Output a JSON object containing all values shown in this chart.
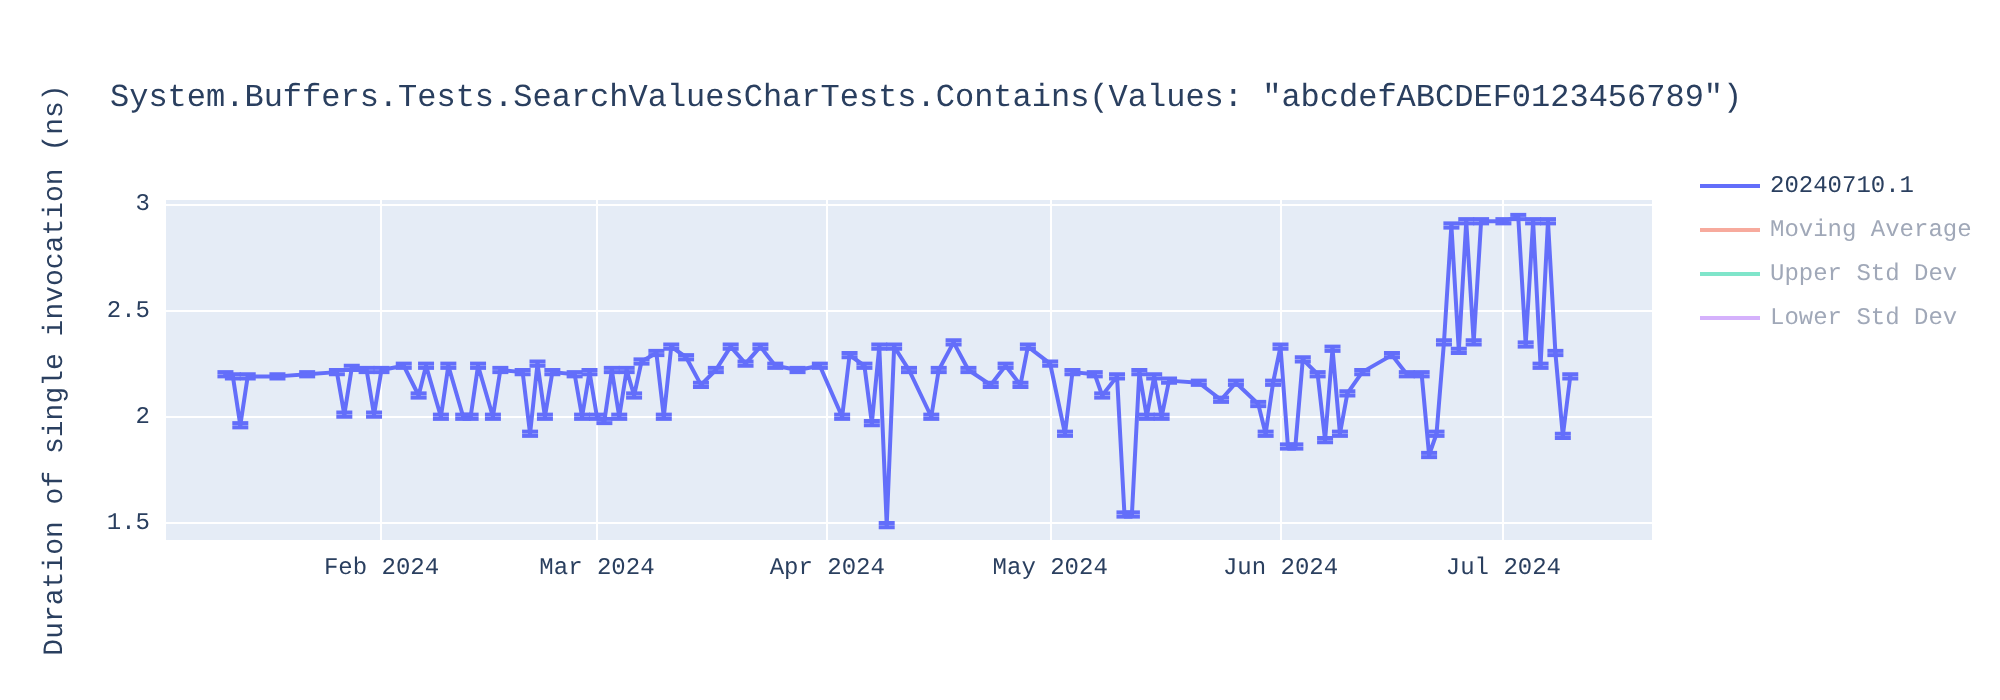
{
  "chart_data": {
    "type": "line",
    "title": "System.Buffers.Tests.SearchValuesCharTests.Contains(Values: \"abcdefABCDEF0123456789\")",
    "ylabel": "Duration of single invocation (ns)",
    "x": [
      "2024-01-11",
      "2024-01-12",
      "2024-01-13",
      "2024-01-14",
      "2024-01-18",
      "2024-01-22",
      "2024-01-26",
      "2024-01-27",
      "2024-01-28",
      "2024-01-30",
      "2024-01-31",
      "2024-02-01",
      "2024-02-04",
      "2024-02-06",
      "2024-02-07",
      "2024-02-09",
      "2024-02-10",
      "2024-02-12",
      "2024-02-13",
      "2024-02-14",
      "2024-02-16",
      "2024-02-17",
      "2024-02-20",
      "2024-02-21",
      "2024-02-22",
      "2024-02-23",
      "2024-02-24",
      "2024-02-27",
      "2024-02-28",
      "2024-02-29",
      "2024-03-01",
      "2024-03-02",
      "2024-03-03",
      "2024-03-04",
      "2024-03-05",
      "2024-03-06",
      "2024-03-07",
      "2024-03-09",
      "2024-03-10",
      "2024-03-11",
      "2024-03-13",
      "2024-03-15",
      "2024-03-17",
      "2024-03-19",
      "2024-03-21",
      "2024-03-23",
      "2024-03-25",
      "2024-03-28",
      "2024-03-31",
      "2024-04-03",
      "2024-04-04",
      "2024-04-06",
      "2024-04-07",
      "2024-04-08",
      "2024-04-09",
      "2024-04-10",
      "2024-04-12",
      "2024-04-15",
      "2024-04-16",
      "2024-04-18",
      "2024-04-20",
      "2024-04-23",
      "2024-04-25",
      "2024-04-27",
      "2024-04-28",
      "2024-05-01",
      "2024-05-03",
      "2024-05-04",
      "2024-05-07",
      "2024-05-08",
      "2024-05-10",
      "2024-05-11",
      "2024-05-12",
      "2024-05-13",
      "2024-05-14",
      "2024-05-15",
      "2024-05-16",
      "2024-05-17",
      "2024-05-21",
      "2024-05-24",
      "2024-05-26",
      "2024-05-29",
      "2024-05-30",
      "2024-05-31",
      "2024-06-01",
      "2024-06-02",
      "2024-06-03",
      "2024-06-04",
      "2024-06-06",
      "2024-06-07",
      "2024-06-08",
      "2024-06-09",
      "2024-06-10",
      "2024-06-12",
      "2024-06-16",
      "2024-06-18",
      "2024-06-20",
      "2024-06-21",
      "2024-06-22",
      "2024-06-23",
      "2024-06-24",
      "2024-06-25",
      "2024-06-26",
      "2024-06-27",
      "2024-06-28",
      "2024-07-01",
      "2024-07-03",
      "2024-07-04",
      "2024-07-05",
      "2024-07-06",
      "2024-07-07",
      "2024-07-08",
      "2024-07-09",
      "2024-07-10"
    ],
    "series": [
      {
        "name": "20240710.1",
        "color": "#636efa",
        "values": [
          2.2,
          2.19,
          1.96,
          2.19,
          2.19,
          2.2,
          2.21,
          2.01,
          2.23,
          2.22,
          2.01,
          2.22,
          2.24,
          2.1,
          2.24,
          2.0,
          2.24,
          2.0,
          2.0,
          2.24,
          2.0,
          2.22,
          2.21,
          1.92,
          2.25,
          2.0,
          2.21,
          2.2,
          2.0,
          2.21,
          2.0,
          1.98,
          2.22,
          2.0,
          2.22,
          2.1,
          2.26,
          2.3,
          2.0,
          2.33,
          2.28,
          2.15,
          2.22,
          2.33,
          2.25,
          2.33,
          2.24,
          2.22,
          2.24,
          2.0,
          2.29,
          2.24,
          1.97,
          2.33,
          1.49,
          2.33,
          2.22,
          2.0,
          2.22,
          2.35,
          2.22,
          2.15,
          2.24,
          2.15,
          2.33,
          2.25,
          1.92,
          2.21,
          2.2,
          2.1,
          2.19,
          1.54,
          1.54,
          2.21,
          2.0,
          2.19,
          2.0,
          2.17,
          2.16,
          2.08,
          2.16,
          2.06,
          1.92,
          2.16,
          2.33,
          1.86,
          1.86,
          2.27,
          2.2,
          1.89,
          2.32,
          1.92,
          2.11,
          2.21,
          2.29,
          2.2,
          2.2,
          1.82,
          1.92,
          2.35,
          2.9,
          2.31,
          2.92,
          2.35,
          2.92,
          2.92,
          2.94,
          2.34,
          2.92,
          2.24,
          2.92,
          2.3,
          1.91,
          2.19
        ],
        "errors": [
          0.01,
          0.01,
          0.01,
          0.01,
          0.01,
          0.01,
          0.01,
          0.01,
          0.01,
          0.01,
          0.01,
          0.01,
          0.01,
          0.01,
          0.01,
          0.01,
          0.01,
          0.01,
          0.01,
          0.01,
          0.01,
          0.01,
          0.01,
          0.01,
          0.01,
          0.01,
          0.01,
          0.01,
          0.01,
          0.01,
          0.01,
          0.01,
          0.01,
          0.01,
          0.01,
          0.01,
          0.01,
          0.01,
          0.01,
          0.01,
          0.01,
          0.01,
          0.01,
          0.01,
          0.01,
          0.01,
          0.01,
          0.01,
          0.01,
          0.01,
          0.01,
          0.01,
          0.01,
          0.01,
          0.01,
          0.01,
          0.01,
          0.01,
          0.01,
          0.01,
          0.01,
          0.01,
          0.01,
          0.01,
          0.01,
          0.01,
          0.01,
          0.01,
          0.01,
          0.01,
          0.01,
          0.01,
          0.01,
          0.01,
          0.01,
          0.01,
          0.01,
          0.01,
          0.01,
          0.01,
          0.01,
          0.01,
          0.01,
          0.01,
          0.01,
          0.01,
          0.01,
          0.01,
          0.01,
          0.01,
          0.01,
          0.01,
          0.01,
          0.01,
          0.01,
          0.01,
          0.01,
          0.01,
          0.01,
          0.01,
          0.01,
          0.01,
          0.01,
          0.01,
          0.01,
          0.01,
          0.01,
          0.01,
          0.01,
          0.01,
          0.01,
          0.01,
          0.01,
          0.01
        ]
      },
      {
        "name": "Moving Average",
        "color": "#ef553b",
        "values": [
          null,
          null,
          null,
          null,
          null,
          null,
          null,
          null,
          null,
          null,
          null,
          null,
          null,
          null,
          null,
          null,
          null,
          null,
          null,
          null,
          null,
          null,
          null,
          null,
          null,
          null,
          null,
          null,
          null,
          null,
          null,
          null,
          null,
          null,
          null,
          null,
          null,
          null,
          null,
          null,
          null,
          null,
          null,
          null,
          null,
          null,
          null,
          null,
          null,
          null,
          null,
          null,
          null,
          null,
          null,
          null,
          null,
          null,
          null,
          null,
          null,
          null,
          null,
          null,
          null,
          null,
          null,
          null,
          null,
          null,
          null,
          null,
          null,
          null,
          null,
          null,
          null,
          null,
          null,
          null,
          null,
          null,
          null,
          null,
          null,
          null,
          null,
          null,
          null,
          null,
          null,
          null,
          null,
          null,
          null,
          null,
          null,
          null,
          null,
          null,
          null,
          null,
          null,
          null,
          null,
          null,
          null,
          null,
          null,
          null,
          null,
          null,
          null,
          null
        ]
      },
      {
        "name": "Upper Std Dev",
        "color": "#00cc96",
        "values": [
          null,
          null,
          null,
          null,
          null,
          null,
          null,
          null,
          null,
          null,
          null,
          null,
          null,
          null,
          null,
          null,
          null,
          null,
          null,
          null,
          null,
          null,
          null,
          null,
          null,
          null,
          null,
          null,
          null,
          null,
          null,
          null,
          null,
          null,
          null,
          null,
          null,
          null,
          null,
          null,
          null,
          null,
          null,
          null,
          null,
          null,
          null,
          null,
          null,
          null,
          null,
          null,
          null,
          null,
          null,
          null,
          null,
          null,
          null,
          null,
          null,
          null,
          null,
          null,
          null,
          null,
          null,
          null,
          null,
          null,
          null,
          null,
          null,
          null,
          null,
          null,
          null,
          null,
          null,
          null,
          null,
          null,
          null,
          null,
          null,
          null,
          null,
          null,
          null,
          null,
          null,
          null,
          null,
          null,
          null,
          null,
          null,
          null,
          null,
          null,
          null,
          null,
          null,
          null,
          null,
          null,
          null,
          null,
          null,
          null,
          null,
          null,
          null,
          null
        ]
      },
      {
        "name": "Lower Std Dev",
        "color": "#ab63fa",
        "values": [
          null,
          null,
          null,
          null,
          null,
          null,
          null,
          null,
          null,
          null,
          null,
          null,
          null,
          null,
          null,
          null,
          null,
          null,
          null,
          null,
          null,
          null,
          null,
          null,
          null,
          null,
          null,
          null,
          null,
          null,
          null,
          null,
          null,
          null,
          null,
          null,
          null,
          null,
          null,
          null,
          null,
          null,
          null,
          null,
          null,
          null,
          null,
          null,
          null,
          null,
          null,
          null,
          null,
          null,
          null,
          null,
          null,
          null,
          null,
          null,
          null,
          null,
          null,
          null,
          null,
          null,
          null,
          null,
          null,
          null,
          null,
          null,
          null,
          null,
          null,
          null,
          null,
          null,
          null,
          null,
          null,
          null,
          null,
          null,
          null,
          null,
          null,
          null,
          null,
          null,
          null,
          null,
          null,
          null,
          null,
          null,
          null,
          null,
          null,
          null,
          null,
          null,
          null,
          null,
          null,
          null,
          null,
          null,
          null,
          null,
          null,
          null,
          null,
          null
        ]
      }
    ],
    "xlim": [
      "2024-01-03",
      "2024-07-21"
    ],
    "xticks": [
      {
        "value": "2024-02-01",
        "label": "Feb 2024"
      },
      {
        "value": "2024-03-01",
        "label": "Mar 2024"
      },
      {
        "value": "2024-04-01",
        "label": "Apr 2024"
      },
      {
        "value": "2024-05-01",
        "label": "May 2024"
      },
      {
        "value": "2024-06-01",
        "label": "Jun 2024"
      },
      {
        "value": "2024-07-01",
        "label": "Jul 2024"
      }
    ],
    "ylim": [
      1.42,
      3.02
    ],
    "yticks": [
      1.5,
      2,
      2.5,
      3
    ],
    "grid": true,
    "legend": "top right",
    "marker": "none",
    "line_style": "solid"
  }
}
